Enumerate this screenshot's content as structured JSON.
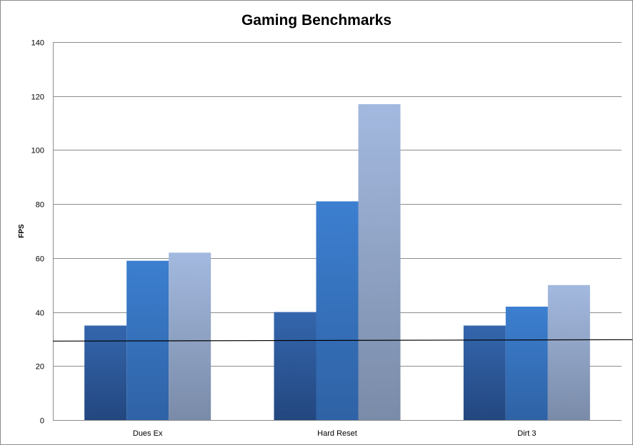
{
  "chart_data": {
    "type": "bar",
    "title": "Gaming Benchmarks",
    "xlabel": "",
    "ylabel": "FPS",
    "categories": [
      "Dues Ex",
      "Hard Reset",
      "Dirt 3"
    ],
    "series": [
      {
        "values": [
          35,
          40,
          35
        ],
        "color_top": "#3466ad",
        "color_bottom": "#23477f"
      },
      {
        "values": [
          59,
          81,
          42
        ],
        "color_top": "#3c7fd0",
        "color_bottom": "#2f62a5"
      },
      {
        "values": [
          62,
          117,
          50
        ],
        "color_top": "#a3b9df",
        "color_bottom": "#7a8ba8"
      }
    ],
    "ylim": [
      0,
      140
    ],
    "yticks": [
      0,
      20,
      40,
      60,
      80,
      100,
      120,
      140
    ],
    "grid": true,
    "legend": "none",
    "reference_line": {
      "value": 29.5,
      "color": "#000000"
    },
    "colors": {
      "gridline": "#8c8c8c",
      "axis": "#8c8c8c"
    }
  }
}
